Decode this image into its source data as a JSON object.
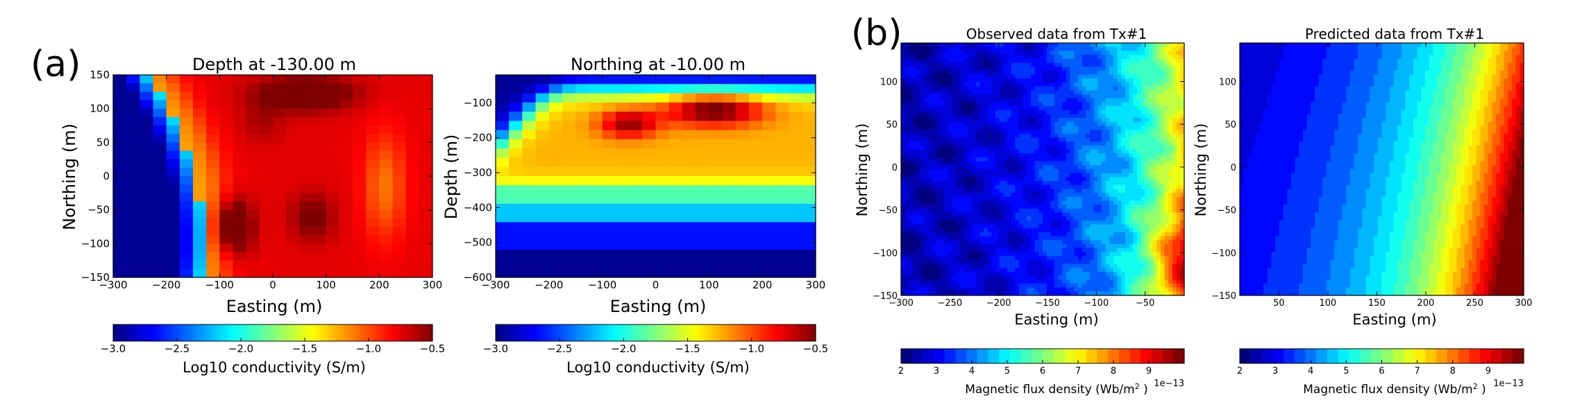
{
  "panel_labels": {
    "a": "(a)",
    "b": "(b)"
  },
  "colormap": [
    "#00007f",
    "#0000ff",
    "#007fff",
    "#00ffff",
    "#7fff7f",
    "#ffff00",
    "#ff7f00",
    "#ff0000",
    "#7f0000"
  ],
  "chart_data": [
    {
      "id": "depth_slice",
      "type": "heatmap",
      "title": "Depth at -130.00 m",
      "xlabel": "Easting (m)",
      "ylabel": "Northing (m)",
      "xlim": [
        -300,
        300
      ],
      "ylim": [
        -150,
        150
      ],
      "xticks": [
        -300,
        -200,
        -100,
        0,
        100,
        200,
        300
      ],
      "xtick_labels": [
        "−300",
        "−200",
        "−100",
        "0",
        "100",
        "200",
        "300"
      ],
      "yticks": [
        -150,
        -100,
        -50,
        0,
        50,
        100,
        150
      ],
      "ytick_labels": [
        "−150",
        "−100",
        "−50",
        "0",
        "50",
        "100",
        "150"
      ],
      "value_range": [
        -3.0,
        -0.5
      ],
      "colorbar": {
        "label": "Log10 conductivity (S/m)",
        "ticks": [
          -3.0,
          -2.5,
          -2.0,
          -1.5,
          -1.0,
          -0.5
        ],
        "tick_labels": [
          "−3.0",
          "−2.5",
          "−2.0",
          "−1.5",
          "−1.0",
          "−0.5"
        ]
      }
    },
    {
      "id": "northing_section",
      "type": "heatmap",
      "title": "Northing at -10.00 m",
      "xlabel": "Easting (m)",
      "ylabel": "Depth (m)",
      "xlim": [
        -300,
        300
      ],
      "ylim": [
        -600,
        -20
      ],
      "xticks": [
        -300,
        -200,
        -100,
        0,
        100,
        200,
        300
      ],
      "xtick_labels": [
        "−300",
        "−200",
        "−100",
        "0",
        "100",
        "200",
        "300"
      ],
      "yticks": [
        -600,
        -500,
        -400,
        -300,
        -200,
        -100
      ],
      "ytick_labels": [
        "−600",
        "−500",
        "−400",
        "−300",
        "−200",
        "−100"
      ],
      "value_range": [
        -3.0,
        -0.5
      ],
      "colorbar": {
        "label": "Log10 conductivity (S/m)",
        "ticks": [
          -3.0,
          -2.5,
          -2.0,
          -1.5,
          -1.0,
          -0.5
        ],
        "tick_labels": [
          "−3.0",
          "−2.5",
          "−2.0",
          "−1.5",
          "−1.0",
          "−0.5"
        ]
      }
    },
    {
      "id": "observed",
      "type": "heatmap",
      "title": "Observed data from Tx#1",
      "xlabel": "Easting (m)",
      "ylabel": "Northing (m)",
      "xlim": [
        -300,
        -10
      ],
      "ylim": [
        -150,
        145
      ],
      "xticks": [
        -300,
        -250,
        -200,
        -150,
        -100,
        -50
      ],
      "xtick_labels": [
        "−300",
        "−250",
        "−200",
        "−150",
        "−100",
        "−50"
      ],
      "yticks": [
        -150,
        -100,
        -50,
        0,
        50,
        100
      ],
      "ytick_labels": [
        "−150",
        "−100",
        "−50",
        "0",
        "50",
        "100"
      ],
      "value_range": [
        2,
        10
      ],
      "colorbar": {
        "label": "Magnetic flux density (Wb/m",
        "label_sup": "2",
        "label_end": " )",
        "ticks": [
          2,
          3,
          4,
          5,
          6,
          7,
          8,
          9
        ],
        "tick_labels": [
          "2",
          "3",
          "4",
          "5",
          "6",
          "7",
          "8",
          "9"
        ],
        "offset": "1e−13"
      }
    },
    {
      "id": "predicted",
      "type": "heatmap",
      "title": "Predicted data from Tx#1",
      "xlabel": "Easting (m)",
      "ylabel": "Northing (m)",
      "xlim": [
        10,
        300
      ],
      "ylim": [
        -150,
        145
      ],
      "xticks": [
        50,
        100,
        150,
        200,
        250,
        300
      ],
      "xtick_labels": [
        "50",
        "100",
        "150",
        "200",
        "250",
        "300"
      ],
      "yticks": [
        -150,
        -100,
        -50,
        0,
        50,
        100
      ],
      "ytick_labels": [
        "−150",
        "−100",
        "−50",
        "0",
        "50",
        "100"
      ],
      "value_range": [
        2,
        10
      ],
      "colorbar": {
        "label": "Magnetic flux density (Wb/m",
        "label_sup": "2",
        "label_end": " )",
        "ticks": [
          2,
          3,
          4,
          5,
          6,
          7,
          8,
          9
        ],
        "tick_labels": [
          "2",
          "3",
          "4",
          "5",
          "6",
          "7",
          "8",
          "9"
        ],
        "offset": "1e−13"
      }
    }
  ]
}
